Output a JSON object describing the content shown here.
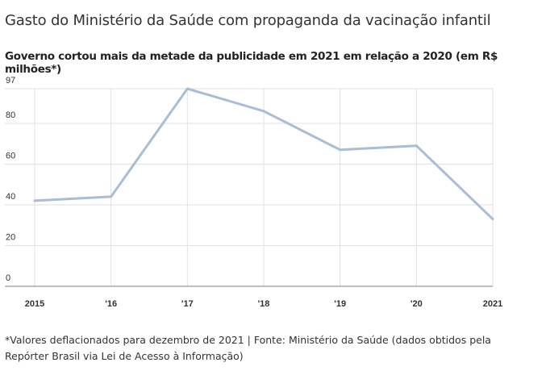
{
  "title": "Gasto do Ministério da Saúde com propaganda da vacinação infantil",
  "subtitle": "Governo cortou mais da metade da publicidade em 2021 em relação a 2020 (em R$ milhões*)",
  "footnote": "*Valores deflacionados para dezembro de 2021 | Fonte: Ministério da Saúde (dados obtidos pela Repórter Brasil via Lei de Acesso à Informação)",
  "chart_data": {
    "type": "line",
    "title": "Gasto do Ministério da Saúde com propaganda da vacinação infantil",
    "xlabel": "",
    "ylabel": "R$ milhões",
    "categories": [
      "2015",
      "'16",
      "'17",
      "'18",
      "'19",
      "'20",
      "2021"
    ],
    "series": [
      {
        "name": "Gasto",
        "values": [
          42,
          44,
          97,
          86,
          67,
          69,
          33
        ],
        "color": "#a9bdd6"
      }
    ],
    "yticks": [
      0,
      20,
      40,
      60,
      80,
      97
    ],
    "ylim": [
      0,
      97
    ],
    "grid": true
  }
}
